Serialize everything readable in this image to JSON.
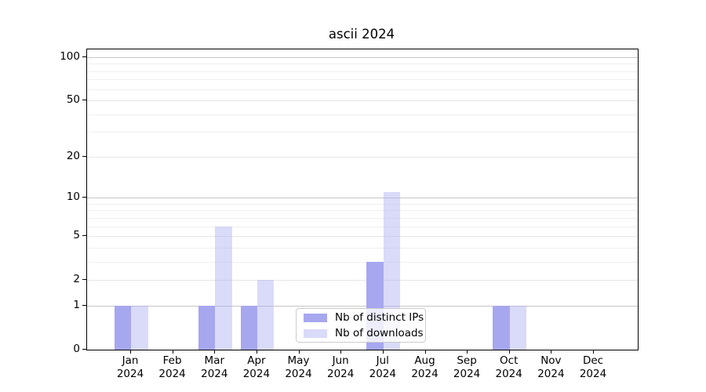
{
  "chart_data": {
    "type": "bar",
    "title": "ascii 2024",
    "categories": [
      {
        "month": "Jan",
        "year": "2024"
      },
      {
        "month": "Feb",
        "year": "2024"
      },
      {
        "month": "Mar",
        "year": "2024"
      },
      {
        "month": "Apr",
        "year": "2024"
      },
      {
        "month": "May",
        "year": "2024"
      },
      {
        "month": "Jun",
        "year": "2024"
      },
      {
        "month": "Jul",
        "year": "2024"
      },
      {
        "month": "Aug",
        "year": "2024"
      },
      {
        "month": "Sep",
        "year": "2024"
      },
      {
        "month": "Oct",
        "year": "2024"
      },
      {
        "month": "Nov",
        "year": "2024"
      },
      {
        "month": "Dec",
        "year": "2024"
      }
    ],
    "series": [
      {
        "name": "Nb of distinct IPs",
        "color": "rgba(167,167,240,1)",
        "values": [
          1,
          0,
          1,
          1,
          0,
          0,
          3,
          0,
          0,
          1,
          0,
          0
        ]
      },
      {
        "name": "Nb of downloads",
        "color": "rgba(167,167,240,0.42)",
        "values": [
          1,
          0,
          6,
          2,
          0,
          0,
          11,
          0,
          0,
          1,
          0,
          0
        ]
      }
    ],
    "y_axis": {
      "scale": "log10(1+value)",
      "major_ticks": [
        0,
        1,
        2,
        5,
        10,
        20,
        50,
        100
      ],
      "strong_gridlines": [
        1,
        10,
        100
      ],
      "minor_gridlines": [
        3,
        4,
        6,
        7,
        8,
        9,
        30,
        40,
        60,
        70,
        80,
        90
      ],
      "y_max": 113
    },
    "legend_position": "inside lower center",
    "grid": true
  }
}
